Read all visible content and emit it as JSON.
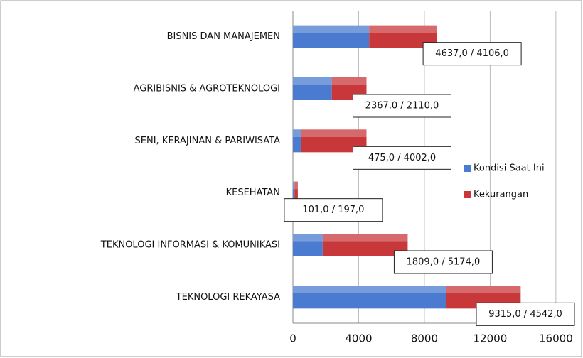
{
  "chart_data": {
    "type": "stacked_barh",
    "categories": [
      "BISNIS DAN MANAJEMEN",
      "AGRIBISNIS & AGROTEKNOLOGI",
      "SENI, KERAJINAN & PARIWISATA",
      "KESEHATAN",
      "TEKNOLOGI INFORMASI & KOMUNIKASI",
      "TEKNOLOGI REKAYASA"
    ],
    "series": [
      {
        "name": "Kondisi Saat Ini",
        "color": "#4a7bd0",
        "values": [
          4637,
          2367,
          475,
          101,
          1809,
          9315
        ]
      },
      {
        "name": "Kekurangan",
        "color": "#c8373a",
        "values": [
          4106,
          2110,
          4002,
          197,
          5174,
          4542
        ]
      }
    ],
    "data_labels": [
      "4637,0 / 4106,0",
      "2367,0 / 2110,0",
      "475,0 / 4002,0",
      "101,0 / 197,0",
      "1809,0 / 5174,0",
      "9315,0 / 4542,0"
    ],
    "xlim": [
      0,
      17000
    ],
    "xticks": [
      0,
      4000,
      8000,
      12000,
      16000
    ],
    "grid": true,
    "legend": "right"
  }
}
